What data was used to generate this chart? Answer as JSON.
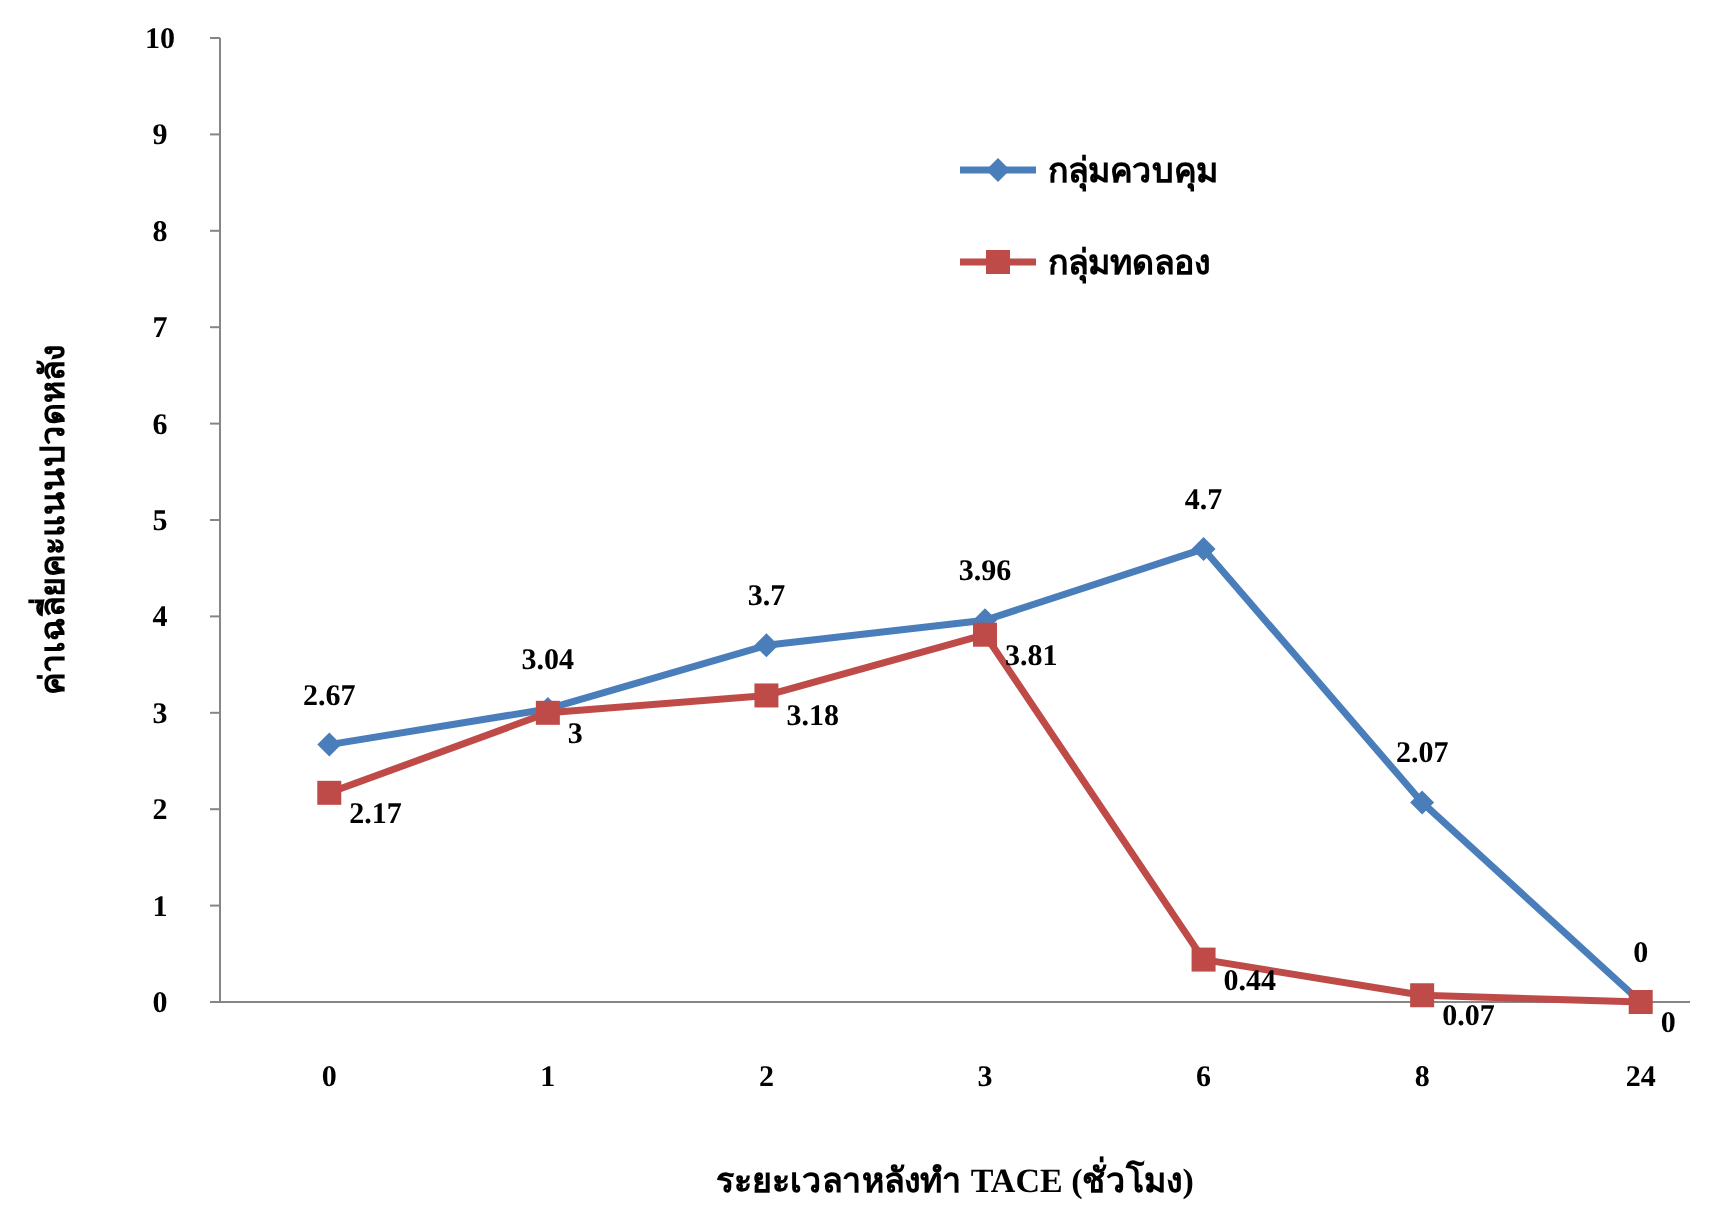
{
  "chart_data": {
    "type": "line",
    "xlabel": "ระยะเวลาหลังทำ TACE (ชั่วโมง)",
    "ylabel": "ค่าเฉลี่ยคะแนนปวดหลัง",
    "categories": [
      "0",
      "1",
      "2",
      "3",
      "6",
      "8",
      "24"
    ],
    "series": [
      {
        "name": "กลุ่มควบคุม",
        "color": "#4a7ebb",
        "marker": "diamond",
        "values": [
          2.67,
          3.04,
          3.7,
          3.96,
          4.7,
          2.07,
          0
        ]
      },
      {
        "name": "กลุ่มทดลอง",
        "color": "#be4b48",
        "marker": "square",
        "values": [
          2.17,
          3,
          3.18,
          3.81,
          0.44,
          0.07,
          0
        ]
      }
    ],
    "ylim": [
      0,
      10
    ],
    "yticks": [
      0,
      1,
      2,
      3,
      4,
      5,
      6,
      7,
      8,
      9,
      10
    ],
    "data_labels": true,
    "legend": "top right",
    "grid": false
  }
}
